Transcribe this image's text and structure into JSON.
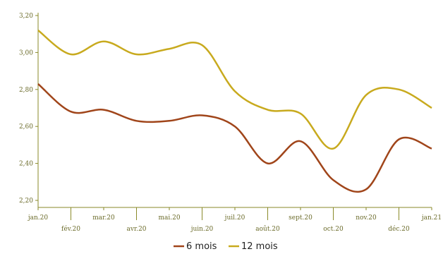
{
  "chart_data": {
    "type": "line",
    "categories": [
      "jan.20",
      "fév.20",
      "mar.20",
      "avr.20",
      "mai.20",
      "juin.20",
      "juil.20",
      "août.20",
      "sept.20",
      "oct.20",
      "nov.20",
      "déc.20",
      "jan.21"
    ],
    "series": [
      {
        "name": "6 mois",
        "color": "#a0451a",
        "values": [
          2.83,
          2.68,
          2.69,
          2.63,
          2.63,
          2.66,
          2.6,
          2.4,
          2.52,
          2.31,
          2.26,
          2.53,
          2.48
        ]
      },
      {
        "name": "12 mois",
        "color": "#c8aa1e",
        "values": [
          3.12,
          2.99,
          3.06,
          2.99,
          3.02,
          3.04,
          2.79,
          2.69,
          2.67,
          2.48,
          2.77,
          2.8,
          2.7
        ]
      }
    ],
    "yticks": [
      "2,20",
      "2,40",
      "2,60",
      "2,80",
      "3,00",
      "3,20"
    ],
    "ylim": [
      2.2,
      3.2
    ],
    "axis_color": "#8a8a2a",
    "legend_position": "bottom-center",
    "grid": false
  }
}
